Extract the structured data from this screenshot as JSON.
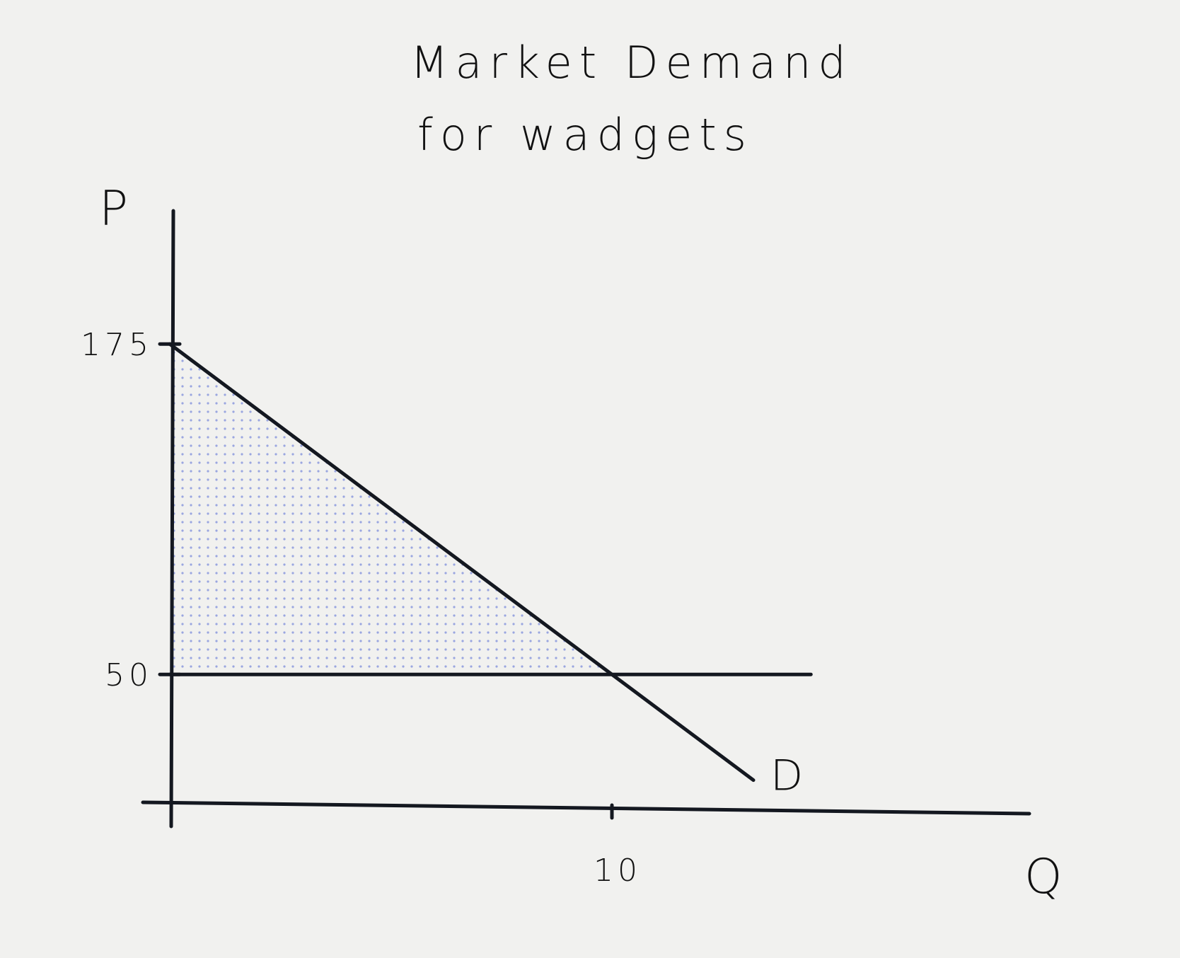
{
  "chart_data": {
    "type": "line",
    "title_lines": [
      "Market Demand",
      "for wadgets"
    ],
    "xlabel": "Q",
    "ylabel": "P",
    "x_ticks": [
      {
        "value": 10,
        "label": "10"
      }
    ],
    "y_ticks": [
      {
        "value": 175,
        "label": "175"
      },
      {
        "value": 50,
        "label": "50"
      }
    ],
    "xlim": [
      0,
      18
    ],
    "ylim": [
      0,
      220
    ],
    "series": [
      {
        "name": "D",
        "kind": "demand",
        "x": [
          0,
          10,
          13.2
        ],
        "y": [
          175,
          50,
          10
        ]
      },
      {
        "kind": "price-line",
        "x": [
          0,
          14.5
        ],
        "y": [
          50,
          50
        ]
      }
    ],
    "shaded_region": {
      "points": [
        [
          0,
          175
        ],
        [
          0,
          50
        ],
        [
          10,
          50
        ]
      ],
      "color": "#9aa6e0"
    },
    "grid": false,
    "ink_color": "#141820"
  }
}
